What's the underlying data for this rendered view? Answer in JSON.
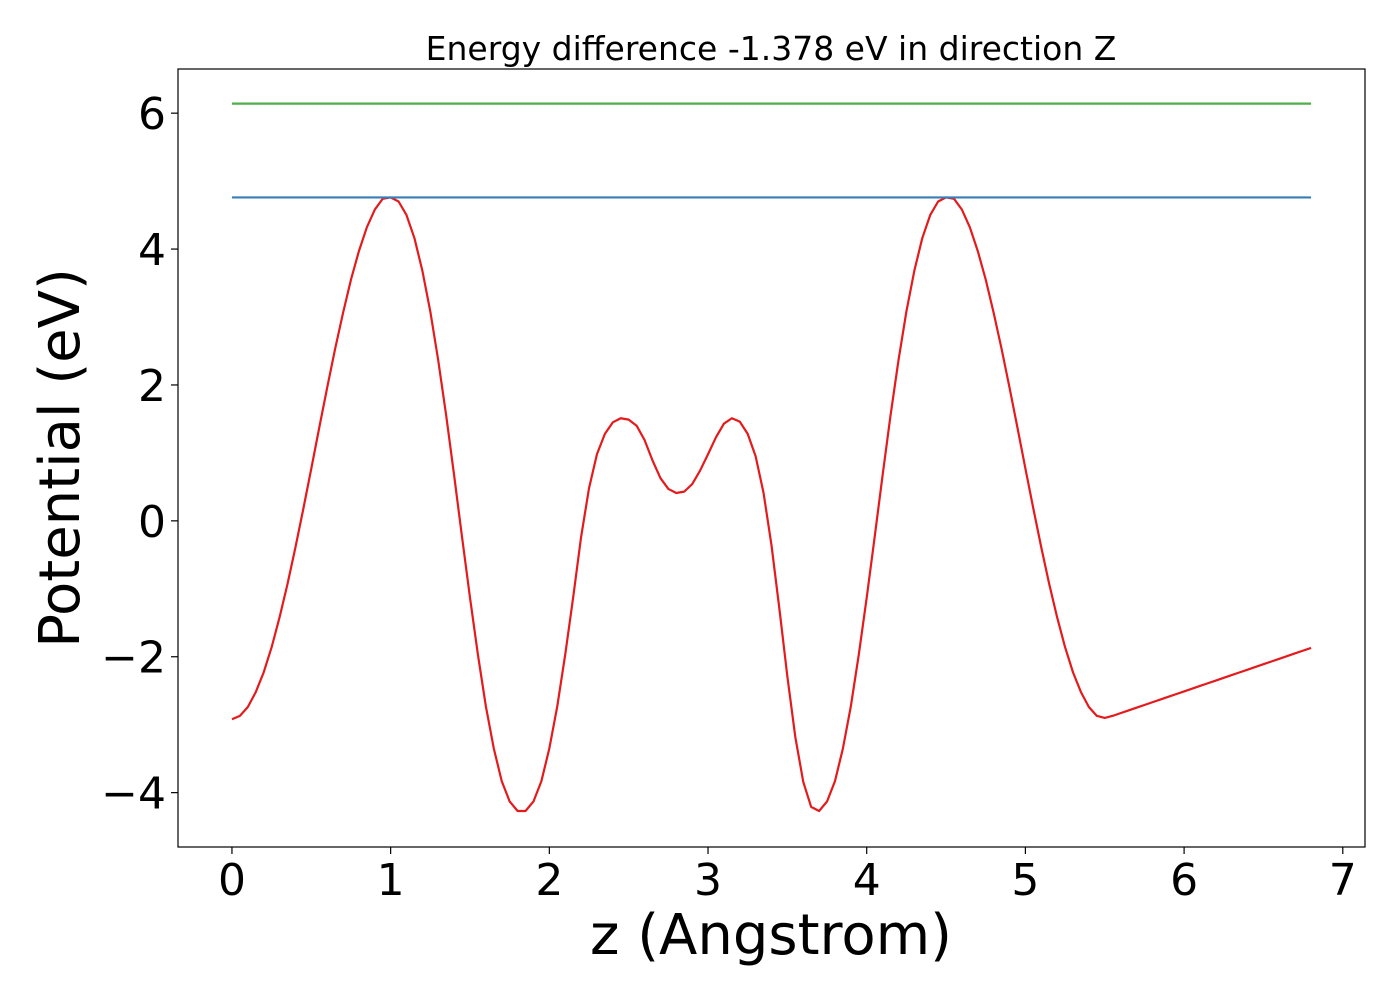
{
  "chart_data": {
    "type": "line",
    "title": "Energy difference -1.378 eV in direction Z",
    "xlabel": "z (Angstrom)",
    "ylabel": "Potential (eV)",
    "xlim": [
      -0.34,
      7.14
    ],
    "ylim": [
      -4.8,
      6.65
    ],
    "xticks": [
      0,
      1,
      2,
      3,
      4,
      5,
      6,
      7
    ],
    "xtick_labels": [
      "0",
      "1",
      "2",
      "3",
      "4",
      "5",
      "6",
      "7"
    ],
    "yticks": [
      -4,
      -2,
      0,
      2,
      4,
      6
    ],
    "ytick_labels": [
      "−4",
      "−2",
      "0",
      "2",
      "4",
      "6"
    ],
    "grid": false,
    "series": [
      {
        "color": "#e41a1c",
        "x": [
          0.0,
          0.05,
          0.1,
          0.15,
          0.2,
          0.25,
          0.3,
          0.35,
          0.4,
          0.45,
          0.5,
          0.55,
          0.6,
          0.65,
          0.7,
          0.75,
          0.8,
          0.85,
          0.9,
          0.95,
          1.0,
          1.05,
          1.1,
          1.15,
          1.2,
          1.25,
          1.3,
          1.35,
          1.4,
          1.45,
          1.5,
          1.55,
          1.6,
          1.65,
          1.7,
          1.75,
          1.8,
          1.85,
          1.9,
          1.95,
          2.0,
          2.05,
          2.1,
          2.15,
          2.2,
          2.25,
          2.3,
          2.35,
          2.4,
          2.45,
          2.5,
          2.55,
          2.6,
          2.65,
          2.7,
          2.75,
          2.8,
          2.85,
          2.9,
          2.95,
          3.0,
          3.05,
          3.1,
          3.15,
          3.2,
          3.25,
          3.3,
          3.35,
          3.4,
          3.45,
          3.5,
          3.55,
          3.6,
          3.65,
          3.7,
          3.75,
          3.8,
          3.85,
          3.9,
          3.95,
          4.0,
          4.05,
          4.1,
          4.15,
          4.2,
          4.25,
          4.3,
          4.35,
          4.4,
          4.45,
          4.5,
          4.55,
          4.6,
          4.65,
          4.7,
          4.75,
          4.8,
          4.85,
          4.9,
          4.95,
          5.0,
          5.05,
          5.1,
          5.15,
          5.2,
          5.25,
          5.3,
          5.35,
          5.4,
          5.45,
          5.5,
          5.55,
          5.6,
          5.65,
          5.7,
          5.75,
          5.8,
          5.85,
          5.9,
          5.95,
          6.0,
          6.05,
          6.1,
          6.15,
          6.2,
          6.25,
          6.3,
          6.35,
          6.4,
          6.45,
          6.5,
          6.55,
          6.6,
          6.65,
          6.7,
          6.75,
          6.8
        ],
        "y": [
          -2.92,
          -2.87,
          -2.74,
          -2.52,
          -2.23,
          -1.86,
          -1.42,
          -0.93,
          -0.39,
          0.18,
          0.77,
          1.37,
          1.96,
          2.53,
          3.06,
          3.55,
          3.97,
          4.32,
          4.58,
          4.74,
          4.76,
          4.7,
          4.5,
          4.16,
          3.68,
          3.08,
          2.36,
          1.55,
          0.67,
          -0.24,
          -1.13,
          -1.97,
          -2.73,
          -3.35,
          -3.83,
          -4.13,
          -4.27,
          -4.27,
          -4.13,
          -3.83,
          -3.35,
          -2.73,
          -1.97,
          -1.13,
          -0.24,
          0.48,
          0.98,
          1.28,
          1.45,
          1.51,
          1.49,
          1.4,
          1.19,
          0.89,
          0.63,
          0.47,
          0.41,
          0.43,
          0.54,
          0.74,
          0.98,
          1.23,
          1.43,
          1.51,
          1.46,
          1.28,
          0.95,
          0.41,
          -0.36,
          -1.3,
          -2.29,
          -3.18,
          -3.84,
          -4.21,
          -4.27,
          -4.13,
          -3.83,
          -3.35,
          -2.73,
          -1.97,
          -1.13,
          -0.24,
          0.67,
          1.55,
          2.36,
          3.08,
          3.68,
          4.16,
          4.5,
          4.7,
          4.76,
          4.74,
          4.58,
          4.32,
          3.97,
          3.55,
          3.06,
          2.53,
          1.96,
          1.37,
          0.77,
          0.18,
          -0.39,
          -0.93,
          -1.42,
          -1.86,
          -2.23,
          -2.52,
          -2.74,
          -2.87,
          -2.9,
          -2.87,
          -2.83,
          -2.79,
          -2.75,
          -2.71,
          -2.67,
          -2.63,
          -2.59,
          -2.55,
          -2.51,
          -2.47,
          -2.43,
          -2.39,
          -2.35,
          -2.31,
          -2.27,
          -2.23,
          -2.19,
          -2.15,
          -2.11,
          -2.07,
          -2.03,
          -1.99,
          -1.95,
          -1.91,
          -1.87
        ]
      },
      {
        "color": "#377eb8",
        "x": [
          0.0,
          6.8
        ],
        "y": [
          4.76,
          4.76
        ]
      },
      {
        "color": "#4daf4a",
        "x": [
          0.0,
          6.8
        ],
        "y": [
          6.14,
          6.14
        ]
      }
    ]
  }
}
